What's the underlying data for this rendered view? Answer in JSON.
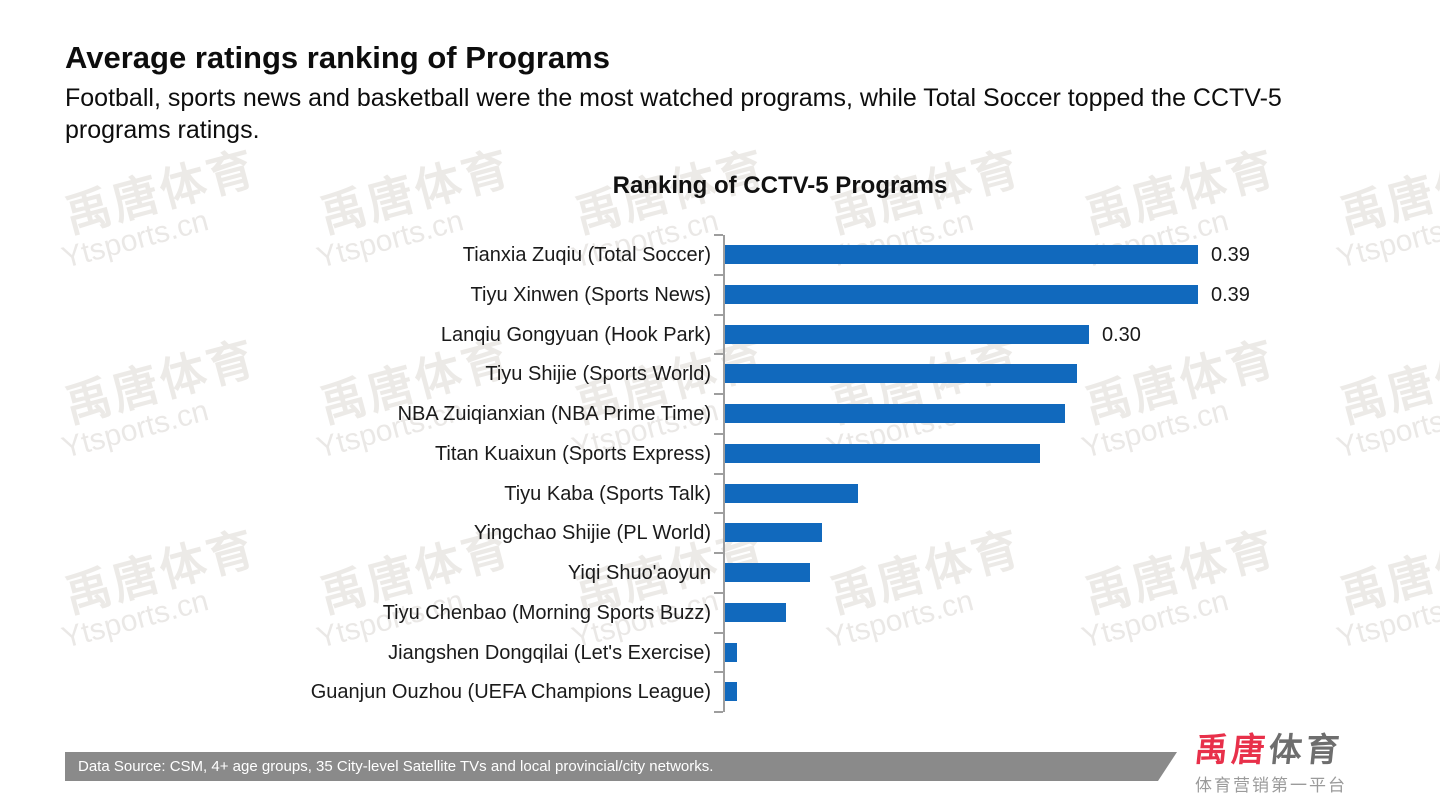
{
  "page": {
    "title": "Average ratings ranking of Programs",
    "subtitle": "Football, sports news and basketball were the most watched programs, while Total Soccer topped the CCTV-5 programs ratings."
  },
  "chart_data": {
    "type": "bar",
    "orientation": "horizontal",
    "title": "Ranking of CCTV-5 Programs",
    "categories": [
      "Tianxia Zuqiu (Total Soccer)",
      "Tiyu Xinwen (Sports News)",
      "Lanqiu Gongyuan (Hook Park)",
      "Tiyu Shijie (Sports World)",
      "NBA Zuiqianxian (NBA Prime Time)",
      "Titan Kuaixun (Sports Express)",
      "Tiyu Kaba (Sports Talk)",
      "Yingchao Shijie (PL World)",
      "Yiqi Shuo'aoyun",
      "Tiyu Chenbao (Morning Sports Buzz)",
      "Jiangshen Dongqilai (Let's Exercise)",
      "Guanjun Ouzhou (UEFA Champions League)"
    ],
    "values": [
      0.39,
      0.39,
      0.3,
      0.29,
      0.28,
      0.26,
      0.11,
      0.08,
      0.07,
      0.05,
      0.01,
      0.01
    ],
    "data_labels": [
      "0.39",
      "0.39",
      "0.30",
      "",
      "",
      "",
      "",
      "",
      "",
      "",
      "",
      ""
    ],
    "xlabel": "",
    "ylabel": "",
    "xlim": [
      0,
      0.55
    ],
    "grid": false,
    "legend": "none",
    "bar_color": "#1169bd",
    "axis_color": "#9e9e9e"
  },
  "watermark": {
    "line1": "禹唐体育",
    "line2": "Ytsports.cn"
  },
  "footer": {
    "source_text": "Data Source: CSM, 4+ age groups, 35 City-level Satellite TVs and local provincial/city networks.",
    "bar_color": "#8a8a8a"
  },
  "logo": {
    "brand_red": "禹唐",
    "brand_gray": "体育",
    "tagline": "体育营销第一平台",
    "red": "#e8304a"
  }
}
